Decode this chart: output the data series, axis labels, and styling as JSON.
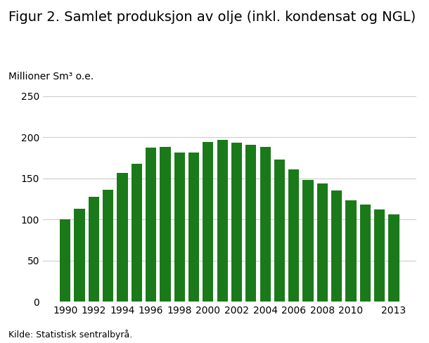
{
  "title": "Figur 2. Samlet produksjon av olje (inkl. kondensat og NGL)",
  "ylabel": "Millioner Sm³ o.e.",
  "source": "Kilde: Statistisk sentralbyrå.",
  "years": [
    1990,
    1991,
    1992,
    1993,
    1994,
    1995,
    1996,
    1997,
    1998,
    1999,
    2000,
    2001,
    2002,
    2003,
    2004,
    2005,
    2006,
    2007,
    2008,
    2009,
    2010,
    2011,
    2012,
    2013
  ],
  "values": [
    100,
    113,
    128,
    136,
    157,
    168,
    187,
    188,
    181,
    181,
    194,
    197,
    193,
    191,
    188,
    173,
    161,
    148,
    144,
    135,
    123,
    118,
    112,
    106
  ],
  "bar_color": "#1a7a1a",
  "ylim": [
    0,
    250
  ],
  "yticks": [
    0,
    50,
    100,
    150,
    200,
    250
  ],
  "xticks": [
    1990,
    1992,
    1994,
    1996,
    1998,
    2000,
    2002,
    2004,
    2006,
    2008,
    2010,
    2013
  ],
  "background_color": "#ffffff",
  "grid_color": "#cccccc",
  "title_fontsize": 14,
  "label_fontsize": 10,
  "tick_fontsize": 10,
  "source_fontsize": 9
}
